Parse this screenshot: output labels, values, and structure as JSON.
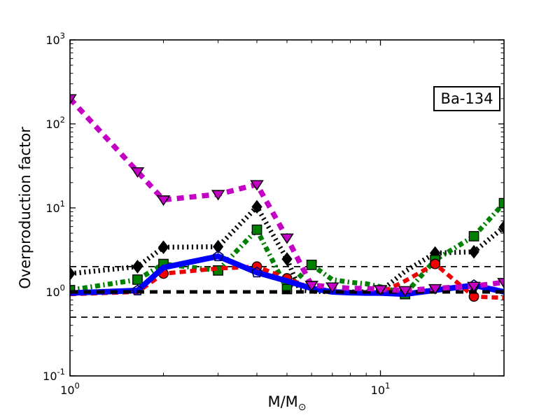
{
  "figure": {
    "ylabel": "Overproduction factor",
    "xlabel_main": "M/M",
    "xlabel_sub": "⊙",
    "annotation": "Ba-134",
    "background": "#ffffff"
  },
  "chart_data": {
    "type": "line",
    "xlabel": "M/M☉",
    "ylabel": "Overproduction factor",
    "xscale": "log",
    "yscale": "log",
    "xlim": [
      1,
      25
    ],
    "ylim": [
      0.1,
      1000
    ],
    "grid": false,
    "legend": "none",
    "annotation": "Ba-134",
    "x_major_ticks": [
      {
        "v": 1,
        "base": "10",
        "exp": "0"
      },
      {
        "v": 10,
        "base": "10",
        "exp": "1"
      }
    ],
    "y_major_ticks": [
      {
        "v": 0.1,
        "base": "10",
        "exp": "-1"
      },
      {
        "v": 1,
        "base": "10",
        "exp": "0"
      },
      {
        "v": 10,
        "base": "10",
        "exp": "1"
      },
      {
        "v": 100,
        "base": "10",
        "exp": "2"
      },
      {
        "v": 1000,
        "base": "10",
        "exp": "3"
      }
    ],
    "hlines": [
      {
        "y": 2,
        "color": "#000000",
        "style": "dashed",
        "width": 1.8,
        "dash": [
          9,
          7
        ],
        "layer": "below"
      },
      {
        "y": 0.5,
        "color": "#000000",
        "style": "dashed",
        "width": 1.8,
        "dash": [
          9,
          7
        ],
        "layer": "below"
      },
      {
        "y": 1,
        "color": "#000000",
        "style": "dashed",
        "width": 5,
        "dash": [
          11,
          8
        ],
        "layer": "above"
      }
    ],
    "series": [
      {
        "name": "black-dotted-diamonds",
        "color": "#000000",
        "style": "dotted",
        "line_width": 7,
        "dash": [
          2.2,
          4.6
        ],
        "marker": "diamond",
        "marker_fill": "#000000",
        "x": [
          1,
          1.65,
          2,
          3,
          4,
          5,
          5.5,
          6,
          7,
          8,
          9,
          10,
          12,
          15,
          20,
          25
        ],
        "y": [
          1.65,
          2.0,
          3.4,
          3.45,
          10.3,
          2.46,
          1.05,
          1.02,
          1.0,
          1.0,
          1.0,
          1.02,
          1.75,
          2.9,
          3.0,
          5.9
        ],
        "marker_x": [
          1,
          1.65,
          2,
          3,
          4,
          5,
          15,
          20,
          25
        ]
      },
      {
        "name": "green-dashdot-squares",
        "color": "#008000",
        "style": "dashdot",
        "line_width": 7,
        "dash": [
          7,
          4.5,
          2.2,
          4.5
        ],
        "marker": "square",
        "marker_fill": "#008000",
        "x": [
          1,
          1.65,
          2,
          3,
          4,
          5,
          6,
          7,
          8,
          9,
          10,
          12,
          15,
          20,
          25
        ],
        "y": [
          1.05,
          1.4,
          2.15,
          1.8,
          5.5,
          1.08,
          2.1,
          1.4,
          1.3,
          1.25,
          1.15,
          0.94,
          2.4,
          4.6,
          11.4
        ],
        "marker_x": [
          1,
          1.65,
          2,
          3,
          4,
          5,
          6,
          12,
          15,
          20,
          25
        ]
      },
      {
        "name": "red-dashed-circles",
        "color": "#ee0000",
        "style": "dashed",
        "line_width": 6,
        "dash": [
          9,
          6
        ],
        "marker": "circle",
        "marker_fill": "#ee0000",
        "x": [
          1,
          1.65,
          2,
          3,
          4,
          5,
          6,
          7,
          8,
          9,
          10,
          12,
          15,
          20,
          25
        ],
        "y": [
          0.94,
          1.0,
          1.65,
          1.9,
          2.0,
          1.45,
          1.1,
          1.0,
          0.97,
          0.96,
          0.97,
          1.35,
          2.15,
          0.88,
          0.85
        ],
        "marker_x": [
          2,
          4,
          5,
          15,
          20
        ]
      },
      {
        "name": "blue-solid-pentagons",
        "color": "#0000ff",
        "style": "solid",
        "line_width": 8,
        "dash": null,
        "marker": "pentagon",
        "marker_fill": "none",
        "x": [
          1,
          1.65,
          2,
          3,
          4,
          5,
          6,
          7,
          8,
          9,
          10,
          12,
          15,
          20,
          25
        ],
        "y": [
          0.97,
          1.04,
          1.95,
          2.65,
          1.7,
          1.35,
          1.1,
          1.0,
          0.98,
          0.97,
          0.97,
          0.94,
          1.05,
          1.2,
          1.0
        ],
        "marker_x": [
          1.65,
          3,
          4,
          20
        ]
      },
      {
        "name": "magenta-thick-dashed-triangles",
        "color": "#c400c4",
        "style": "dashed",
        "line_width": 7.5,
        "dash": [
          10,
          8
        ],
        "marker": "triangle-down",
        "marker_fill": "#c400c4",
        "x": [
          1,
          1.65,
          2,
          3,
          4,
          5,
          6,
          7,
          8,
          9,
          10,
          12,
          15,
          20,
          25
        ],
        "y": [
          200,
          27,
          12.5,
          14.5,
          19,
          4.4,
          1.2,
          1.15,
          1.1,
          1.1,
          1.07,
          1.04,
          1.1,
          1.17,
          1.3
        ],
        "marker_x": [
          1,
          1.65,
          2,
          3,
          4,
          5,
          6,
          7,
          10,
          12,
          15,
          20,
          25
        ]
      }
    ]
  }
}
